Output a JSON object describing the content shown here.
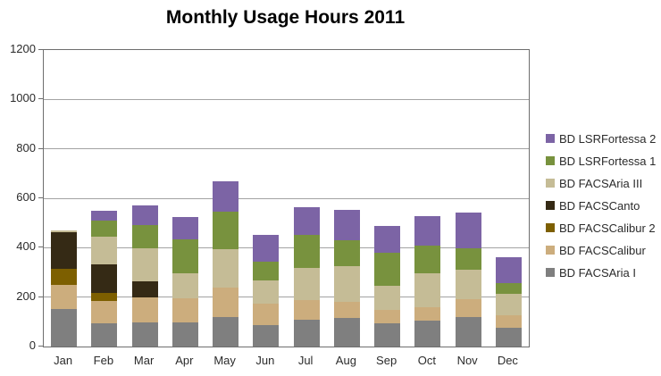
{
  "chart_data": {
    "type": "bar",
    "stacked": true,
    "title": "Monthly Usage Hours 2011",
    "xlabel": "",
    "ylabel": "",
    "ylim": [
      0,
      1200
    ],
    "y_tick_step": 200,
    "y_tick_labels": [
      "0",
      "200",
      "400",
      "600",
      "800",
      "1000",
      "1200"
    ],
    "grid": "horizontal",
    "legend_position": "right",
    "legend_order": "reverse-of-stack",
    "categories": [
      "Jan",
      "Feb",
      "Mar",
      "Apr",
      "May",
      "Jun",
      "Jul",
      "Aug",
      "Sep",
      "Oct",
      "Nov",
      "Dec"
    ],
    "series": [
      {
        "name": "BD FACSAria I",
        "color": "#7f7f7f",
        "values": [
          152,
          94,
          98,
          96,
          120,
          87,
          108,
          116,
          94,
          106,
          118,
          76
        ]
      },
      {
        "name": "BD FACSCalibur",
        "color": "#ccad7d",
        "values": [
          96,
          90,
          101,
          99,
          118,
          86,
          80,
          64,
          54,
          54,
          72,
          49
        ]
      },
      {
        "name": "BD FACSCalibur 2",
        "color": "#7d5f00",
        "values": [
          65,
          33,
          0,
          0,
          0,
          0,
          0,
          0,
          0,
          0,
          0,
          0
        ]
      },
      {
        "name": "BD FACSCanto",
        "color": "#352a15",
        "values": [
          150,
          116,
          65,
          0,
          0,
          0,
          0,
          0,
          0,
          0,
          0,
          0
        ]
      },
      {
        "name": "BD FACSAria III",
        "color": "#c5bc96",
        "values": [
          8,
          111,
          133,
          100,
          157,
          96,
          130,
          147,
          98,
          136,
          120,
          87
        ]
      },
      {
        "name": "BD LSRFortessa 1",
        "color": "#78923e",
        "values": [
          0,
          66,
          94,
          139,
          151,
          76,
          135,
          102,
          135,
          114,
          88,
          45
        ]
      },
      {
        "name": "BD LSRFortessa 2",
        "color": "#7c64a5",
        "values": [
          0,
          41,
          80,
          90,
          122,
          108,
          112,
          124,
          108,
          117,
          145,
          104
        ]
      }
    ]
  }
}
